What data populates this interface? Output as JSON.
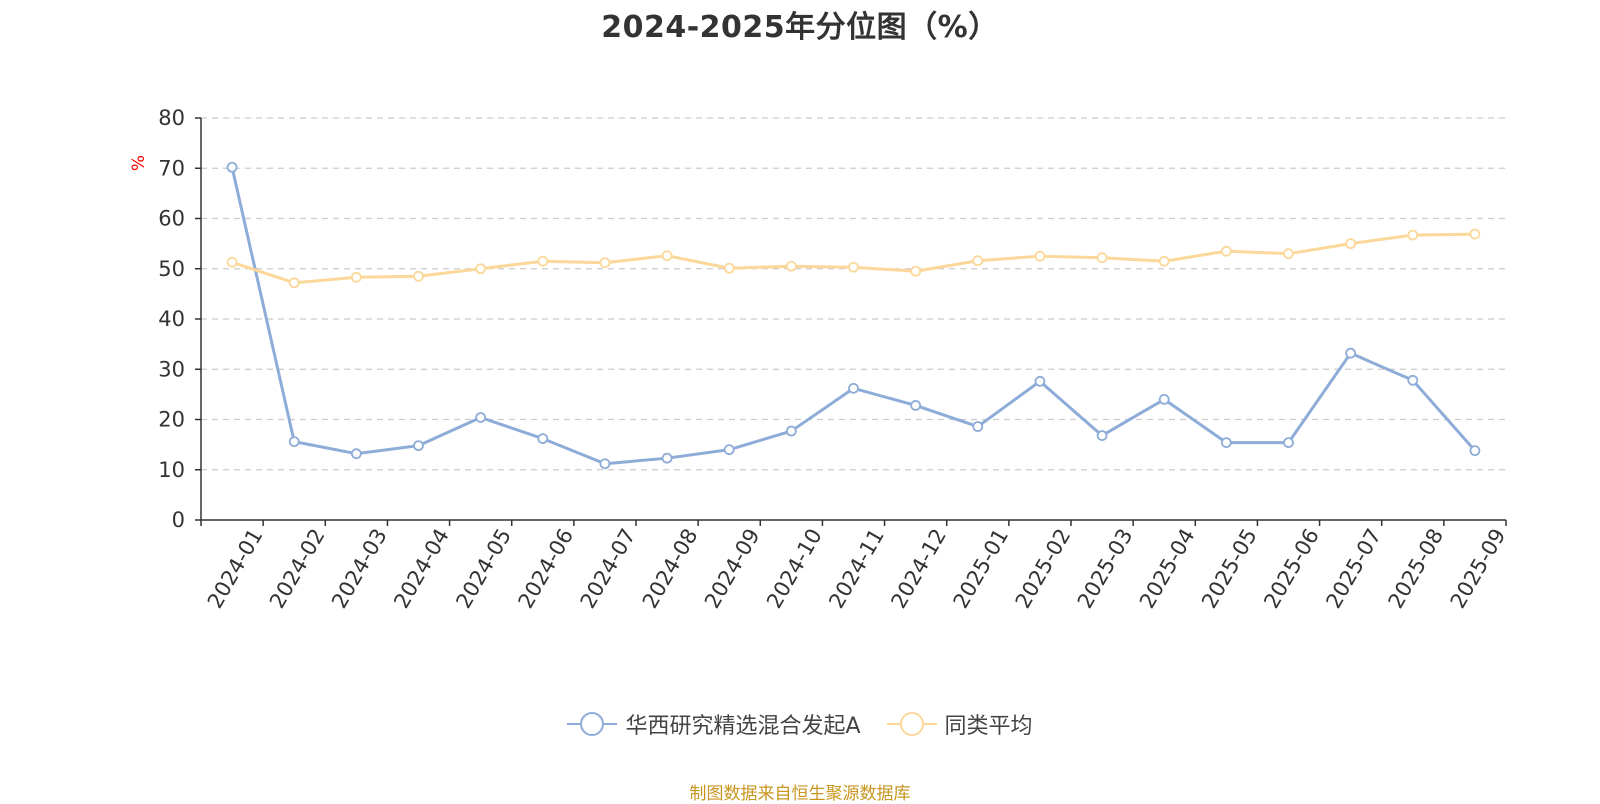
{
  "chart_data": {
    "type": "line",
    "title": "2024-2025年分位图（%）",
    "ylabel": "%",
    "xlabel": "",
    "ylim": [
      0,
      80
    ],
    "yticks": [
      0,
      10,
      20,
      30,
      40,
      50,
      60,
      70,
      80
    ],
    "grid": true,
    "legend_position": "bottom",
    "categories": [
      "2024-01",
      "2024-02",
      "2024-03",
      "2024-04",
      "2024-05",
      "2024-06",
      "2024-07",
      "2024-08",
      "2024-09",
      "2024-10",
      "2024-11",
      "2024-12",
      "2025-01",
      "2025-02",
      "2025-03",
      "2025-04",
      "2025-05",
      "2025-06",
      "2025-07",
      "2025-08",
      "2025-09"
    ],
    "series": [
      {
        "name": "华西研究精选混合发起A",
        "color": "#8eacd8",
        "values": [
          70.2,
          15.6,
          13.2,
          14.8,
          20.4,
          16.2,
          11.2,
          12.3,
          14.0,
          17.7,
          26.2,
          22.8,
          18.6,
          27.6,
          16.8,
          24.0,
          15.4,
          15.4,
          33.2,
          27.8,
          13.8
        ]
      },
      {
        "name": "同类平均",
        "color": "#fbd89a",
        "values": [
          51.3,
          47.2,
          48.3,
          48.5,
          50.0,
          51.5,
          51.2,
          52.6,
          50.1,
          50.5,
          50.3,
          49.5,
          51.6,
          52.5,
          52.2,
          51.5,
          53.5,
          53.0,
          55.0,
          56.7,
          56.9
        ]
      }
    ]
  },
  "source_note": "制图数据来自恒生聚源数据库",
  "colors": {
    "axis": "#333333",
    "grid": "#cccccc",
    "ylabel": "#ff0000",
    "source": "#c8961e"
  }
}
